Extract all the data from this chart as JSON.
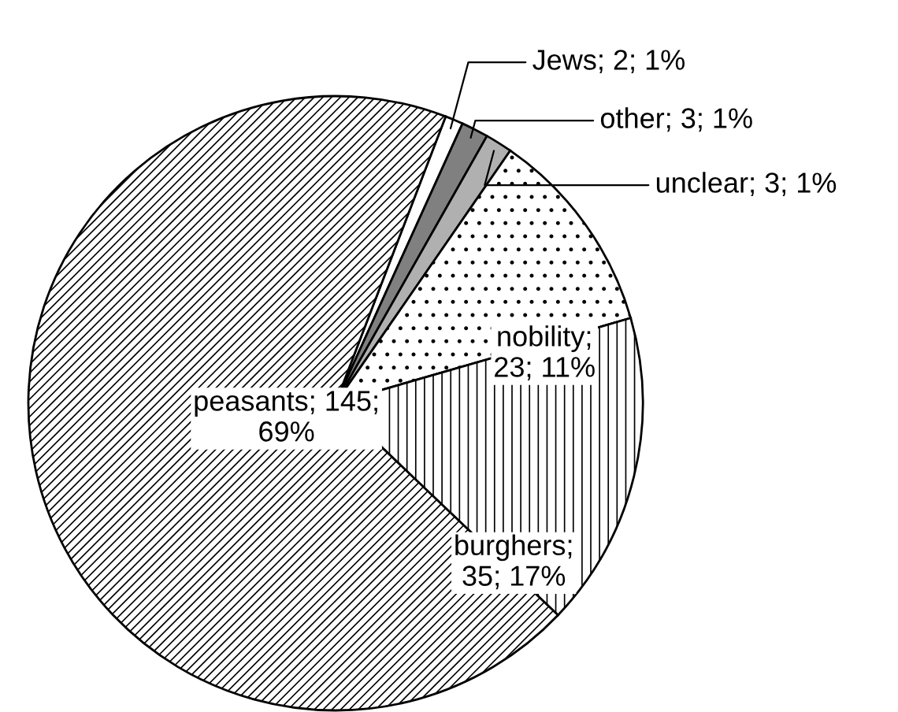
{
  "chart_data": {
    "type": "pie",
    "categories": [
      "Jews",
      "other",
      "unclear",
      "nobility",
      "burghers",
      "peasants"
    ],
    "values": [
      2,
      3,
      3,
      23,
      35,
      145
    ],
    "colors": [
      "#ffffff",
      "#808080",
      "#b0b0b0",
      "#ffffff",
      "#ffffff",
      "#ffffff"
    ],
    "value_labels": [
      "; 2; 1%",
      "; 3; 1%",
      "; 3; 1%",
      ";\n23; 11%",
      ";\n35; 17%",
      "; 145;\n69%"
    ],
    "legend": false
  }
}
